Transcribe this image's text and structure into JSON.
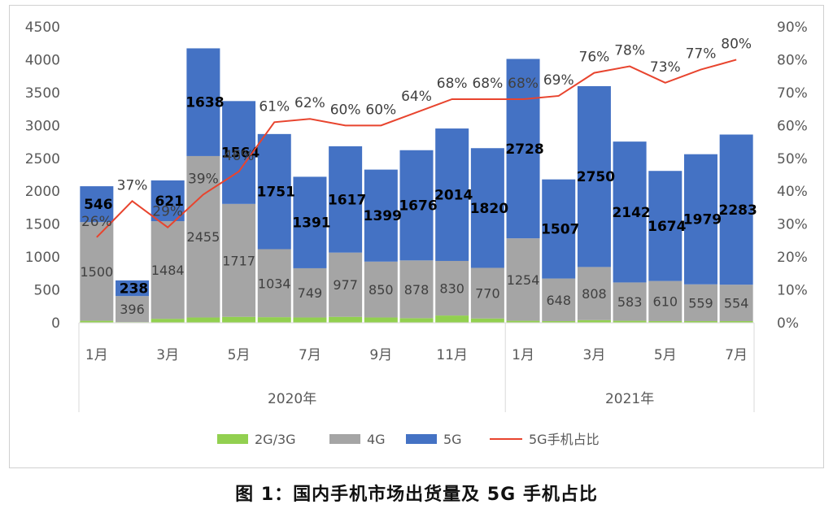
{
  "caption": "图 1：国内手机市场出货量及 5G 手机占比",
  "chart_data": {
    "type": "bar",
    "stacked": true,
    "x": [
      "1月",
      "2月",
      "3月",
      "4月",
      "5月",
      "6月",
      "7月",
      "8月",
      "9月",
      "10月",
      "11月",
      "12月",
      "1月",
      "2月",
      "3月",
      "4月",
      "5月",
      "6月",
      "7月"
    ],
    "x_tick_labels": [
      "1月",
      "",
      "3月",
      "",
      "5月",
      "",
      "7月",
      "",
      "9月",
      "",
      "11月",
      "",
      "1月",
      "",
      "3月",
      "",
      "5月",
      "",
      "7月"
    ],
    "year_groups": [
      {
        "label": "2020年",
        "count": 12
      },
      {
        "label": "2021年",
        "count": 7
      }
    ],
    "left_axis": {
      "ylim": [
        0,
        4500
      ],
      "ticks": [
        "0",
        "500",
        "1000",
        "1500",
        "2000",
        "2500",
        "3000",
        "3500",
        "4000",
        "4500"
      ]
    },
    "right_axis": {
      "ylim": [
        0,
        90
      ],
      "ticks": [
        "0%",
        "10%",
        "20%",
        "30%",
        "40%",
        "50%",
        "60%",
        "70%",
        "80%",
        "90%"
      ]
    },
    "series": [
      {
        "name": "2G/3G",
        "type": "bar",
        "color": "#92d050",
        "values": [
          30,
          10,
          60,
          80,
          90,
          85,
          80,
          90,
          80,
          70,
          110,
          65,
          30,
          25,
          40,
          30,
          25,
          25,
          25
        ]
      },
      {
        "name": "4G",
        "type": "bar",
        "color": "#a5a5a5",
        "values": [
          1500,
          396,
          1484,
          2455,
          1717,
          1034,
          749,
          977,
          850,
          878,
          830,
          770,
          1254,
          648,
          808,
          583,
          610,
          559,
          554
        ]
      },
      {
        "name": "5G",
        "type": "bar",
        "color": "#4472c4",
        "values": [
          546,
          238,
          621,
          1638,
          1564,
          1751,
          1391,
          1617,
          1399,
          1676,
          2014,
          1820,
          2728,
          1507,
          2750,
          2142,
          1674,
          1979,
          2283
        ]
      },
      {
        "name": "5G手机占比",
        "type": "line",
        "color": "#e8442e",
        "axis": "right",
        "values": [
          26,
          37,
          29,
          39,
          46,
          61,
          62,
          60,
          60,
          64,
          68,
          68,
          68,
          69,
          76,
          78,
          73,
          77,
          80
        ]
      }
    ],
    "bar_labels_4g": [
      "1500",
      "396",
      "1484",
      "2455",
      "1717",
      "1034",
      "749",
      "977",
      "850",
      "878",
      "830",
      "770",
      "1254",
      "648",
      "808",
      "583",
      "610",
      "559",
      "554"
    ],
    "bar_labels_5g": [
      "546",
      "238",
      "621",
      "1638",
      "1564",
      "1751",
      "1391",
      "1617",
      "1399",
      "1676",
      "2014",
      "1820",
      "2728",
      "1507",
      "2750",
      "2142",
      "1674",
      "1979",
      "2283"
    ],
    "line_labels": [
      "26%",
      "37%",
      "29%",
      "39%",
      "46%",
      "61%",
      "62%",
      "60%",
      "60%",
      "64%",
      "68%",
      "68%",
      "68%",
      "69%",
      "76%",
      "78%",
      "73%",
      "77%",
      "80%"
    ],
    "legend": [
      "2G/3G",
      "4G",
      "5G",
      "5G手机占比"
    ],
    "legend_position": "bottom",
    "grid": false
  }
}
